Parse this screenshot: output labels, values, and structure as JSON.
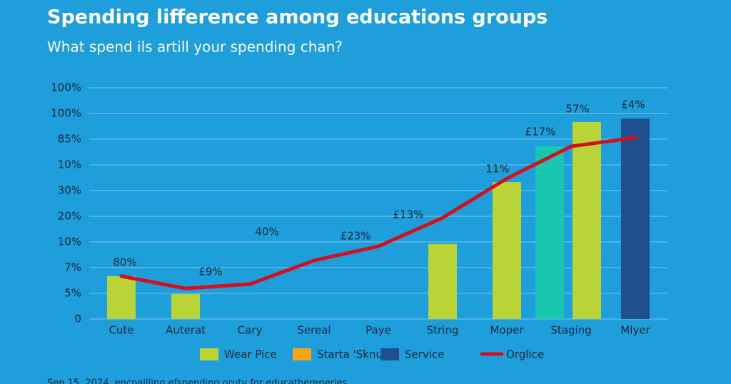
{
  "chart_data": {
    "type": "bar",
    "title": "Spending lifference among educations groups",
    "subtitle": "What spend ils artill your spending chan?",
    "footer": "Sep 15, 2024, encpailling efspending oruty for educathereneries",
    "categories": [
      "Cute",
      "Auterat",
      "Cary",
      "Sereal",
      "Paye",
      "String",
      "Moper",
      "Staging",
      "Mlyer"
    ],
    "ylim": [
      0,
      9
    ],
    "yticks": [
      0,
      {
        "value": 1,
        "label": "5%"
      },
      {
        "value": 2,
        "label": "7%"
      },
      {
        "value": 3,
        "label": "10%"
      },
      {
        "value": 4,
        "label": "20%"
      },
      {
        "value": 5,
        "label": "30%"
      },
      {
        "value": 6,
        "label": "10%"
      },
      {
        "value": 7,
        "label": "85%"
      },
      {
        "value": 8,
        "label": "100%"
      },
      {
        "value": 9,
        "label": "100%"
      }
    ],
    "grid": true,
    "series": [
      {
        "name": "Wear Pice",
        "color": "#b8d437",
        "values": [
          1.67,
          0.97,
          null,
          null,
          null,
          2.92,
          5.33,
          7.67,
          null
        ]
      },
      {
        "name": "Starta 'Sknul",
        "color": "#f4a51c",
        "values": [
          null,
          null,
          null,
          null,
          null,
          null,
          null,
          null,
          null
        ]
      },
      {
        "name": "Service",
        "color": "#1f4f8e",
        "values": [
          null,
          null,
          null,
          null,
          null,
          null,
          null,
          null,
          7.8
        ]
      },
      {
        "color": "#19c6b0",
        "values": [
          null,
          null,
          null,
          null,
          null,
          null,
          null,
          6.72,
          null
        ]
      },
      {
        "name": "Orglice",
        "type": "line",
        "color": "#d3101e",
        "values": [
          1.67,
          1.19,
          1.36,
          2.28,
          2.83,
          3.94,
          5.47,
          6.72,
          7.06
        ]
      }
    ],
    "annotations": [
      "80%",
      "£9%",
      "40%",
      "£23%",
      "£13%",
      "11%",
      "£17%",
      "57%",
      "£4%"
    ]
  }
}
